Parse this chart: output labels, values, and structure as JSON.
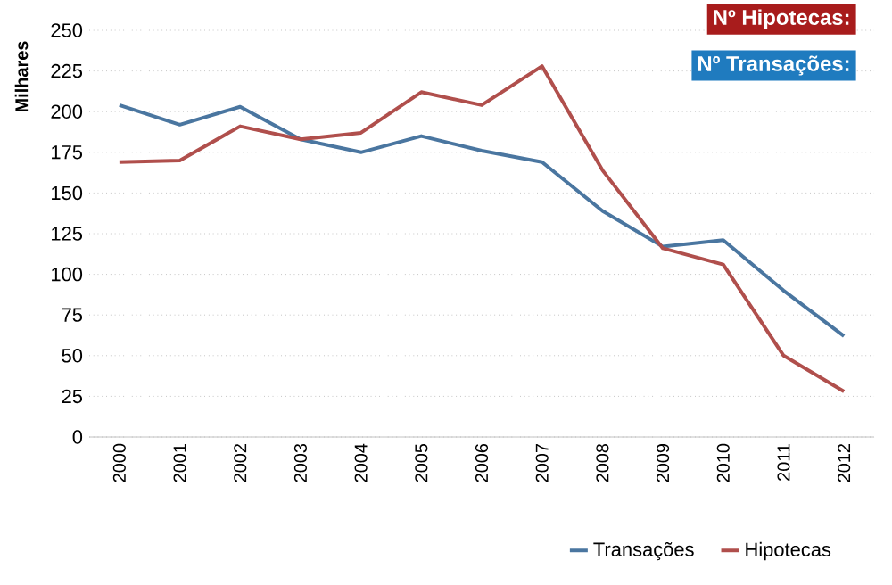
{
  "chart_data": {
    "type": "line",
    "ylabel": "Milhares",
    "categories": [
      "2000",
      "2001",
      "2002",
      "2003",
      "2004",
      "2005",
      "2006",
      "2007",
      "2008",
      "2009",
      "2010",
      "2011",
      "2012"
    ],
    "series": [
      {
        "name": "Transações",
        "color": "#4a76a0",
        "values": [
          204,
          192,
          203,
          183,
          175,
          185,
          176,
          169,
          139,
          117,
          121,
          90,
          62
        ]
      },
      {
        "name": "Hipotecas",
        "color": "#b04f4c",
        "values": [
          169,
          170,
          191,
          183,
          187,
          212,
          204,
          228,
          164,
          116,
          106,
          50,
          28
        ]
      }
    ],
    "ylim": [
      0,
      250
    ],
    "yticks": [
      0,
      25,
      50,
      75,
      100,
      125,
      150,
      175,
      200,
      225,
      250
    ],
    "grid": "y",
    "legend": "bottom",
    "line_style": "solid",
    "marker": "none",
    "annotations": [
      "Nº Hipotecas:",
      "Nº Transações:"
    ]
  }
}
